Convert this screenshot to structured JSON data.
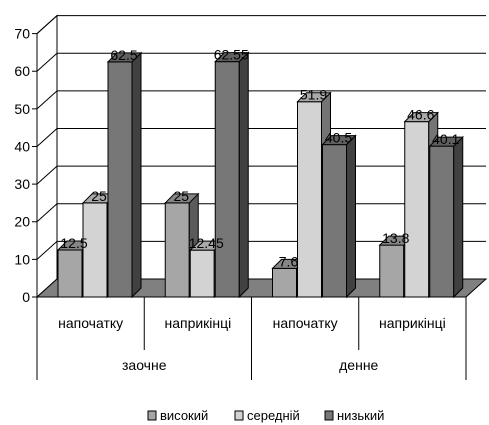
{
  "chart_data": {
    "type": "bar",
    "style": "3d-clustered-column",
    "groups": [
      {
        "name": "заочне",
        "categories": [
          "напочатку",
          "наприкінці"
        ]
      },
      {
        "name": "денне",
        "categories": [
          "напочатку",
          "наприкінці"
        ]
      }
    ],
    "categories": [
      "напочатку",
      "наприкінці",
      "напочатку",
      "наприкінці"
    ],
    "series": [
      {
        "name": "високий",
        "values": [
          12.5,
          25,
          7.6,
          13.8
        ],
        "value_labels": [
          "12.5",
          "25",
          "7.6",
          "13.8"
        ],
        "color": "#a6a6a6"
      },
      {
        "name": "середній",
        "values": [
          25,
          12.45,
          51.9,
          46.6
        ],
        "value_labels": [
          "25",
          "12.45",
          "51.9",
          "46.6"
        ],
        "color": "#d3d3d3"
      },
      {
        "name": "низький",
        "values": [
          62.5,
          62.55,
          40.5,
          40.1
        ],
        "value_labels": [
          "62.5",
          "62.55",
          "40.5",
          "40.1"
        ],
        "color": "#777777"
      }
    ],
    "ylim": [
      0,
      70
    ],
    "yticks": [
      "0",
      "10",
      "20",
      "30",
      "40",
      "50",
      "60",
      "70"
    ],
    "grid": true,
    "legend_position": "bottom",
    "title": "",
    "xlabel": "",
    "ylabel": ""
  }
}
